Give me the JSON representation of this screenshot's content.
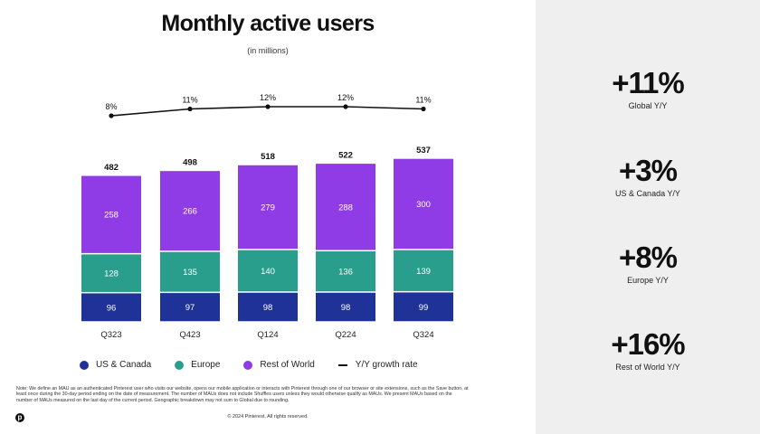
{
  "header": {
    "title": "Monthly active users",
    "subtitle": "(in millions)"
  },
  "chart_data": {
    "type": "bar",
    "stacked": true,
    "title": "Monthly active users",
    "subtitle": "(in millions)",
    "categories": [
      "Q323",
      "Q423",
      "Q124",
      "Q224",
      "Q324"
    ],
    "series": [
      {
        "name": "US & Canada",
        "color": "#1f3297",
        "values": [
          96,
          97,
          98,
          98,
          99
        ]
      },
      {
        "name": "Europe",
        "color": "#2a9e8c",
        "values": [
          128,
          135,
          140,
          136,
          139
        ]
      },
      {
        "name": "Rest of World",
        "color": "#8f3be6",
        "values": [
          258,
          266,
          279,
          288,
          300
        ]
      }
    ],
    "totals": [
      482,
      498,
      518,
      522,
      537
    ],
    "line_series": {
      "name": "Y/Y growth rate",
      "color": "#111111",
      "values": [
        8,
        11,
        12,
        12,
        11
      ],
      "labels": [
        "8%",
        "11%",
        "12%",
        "12%",
        "11%"
      ]
    },
    "ylim": [
      0,
      600
    ]
  },
  "legend": [
    {
      "label": "US & Canada",
      "color": "#1f3297",
      "kind": "dot"
    },
    {
      "label": "Europe",
      "color": "#2a9e8c",
      "kind": "dot"
    },
    {
      "label": "Rest of World",
      "color": "#8f3be6",
      "kind": "dot"
    },
    {
      "label": "Y/Y growth rate",
      "color": "#111111",
      "kind": "line"
    }
  ],
  "note": "Note: We define an MAU as an authenticated Pinterest user who visits our website, opens our mobile application or interacts with Pinterest through one of our browser or site extensions, such as the Save button, at least once during the 30-day period ending on the date of measurement. The number of MAUs does not include Shuffles users unless they would otherwise qualify as MAUs. We present MAUs based on the number of MAUs measured on the last day of the current period. Geographic breakdown may not sum to Global due to rounding.",
  "footer": {
    "copyright": "© 2024 Pinterest. All rights reserved.",
    "logo_letter": "p"
  },
  "stats": [
    {
      "value": "+11%",
      "label": "Global Y/Y"
    },
    {
      "value": "+3%",
      "label": "US & Canada Y/Y"
    },
    {
      "value": "+8%",
      "label": "Europe Y/Y"
    },
    {
      "value": "+16%",
      "label": "Rest of World Y/Y"
    }
  ]
}
